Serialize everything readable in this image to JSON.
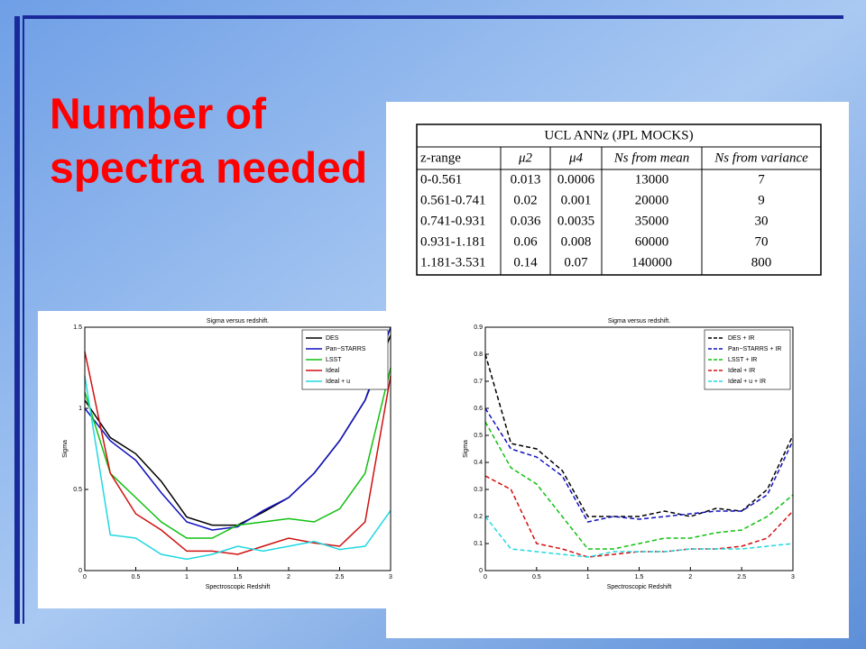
{
  "slide": {
    "title": [
      "Number of",
      "spectra needed"
    ]
  },
  "table": {
    "title": "UCL ANNz (JPL MOCKS)",
    "header": [
      "z-range",
      "μ2",
      "μ4",
      "Ns from mean",
      "Ns from variance"
    ],
    "rows": [
      [
        "0-0.561",
        "0.013",
        "0.0006",
        "13000",
        "7"
      ],
      [
        "0.561-0.741",
        "0.02",
        "0.001",
        "20000",
        "9"
      ],
      [
        "0.741-0.931",
        "0.036",
        "0.0035",
        "35000",
        "30"
      ],
      [
        "0.931-1.181",
        "0.06",
        "0.008",
        "60000",
        "70"
      ],
      [
        "1.181-3.531",
        "0.14",
        "0.07",
        "140000",
        "800"
      ]
    ]
  },
  "chart_data": [
    {
      "type": "line",
      "title": "Sigma versus redshift.",
      "x_label": "Spectroscopic Redshift",
      "y_label": "Sigma",
      "line_style": "solid",
      "legend": "upper right",
      "x": [
        0,
        0.25,
        0.5,
        0.75,
        1,
        1.25,
        1.5,
        1.75,
        2,
        2.25,
        2.5,
        2.75,
        3
      ],
      "xlim": [
        0,
        3
      ],
      "xticks": [
        0,
        0.5,
        1,
        1.5,
        2,
        2.5,
        3
      ],
      "ylim": [
        0,
        1.5
      ],
      "yticks": [
        0,
        0.5,
        1,
        1.5
      ],
      "series": [
        {
          "name": "DES",
          "color": "#000000",
          "values": [
            1.05,
            0.82,
            0.72,
            0.55,
            0.33,
            0.28,
            0.28,
            0.36,
            0.45,
            0.6,
            0.8,
            1.05,
            1.45
          ]
        },
        {
          "name": "Pan−STARRS",
          "color": "#1010c0",
          "values": [
            1.0,
            0.8,
            0.68,
            0.48,
            0.3,
            0.25,
            0.27,
            0.37,
            0.45,
            0.6,
            0.8,
            1.05,
            1.5
          ]
        },
        {
          "name": "LSST",
          "color": "#10c010",
          "values": [
            1.1,
            0.6,
            0.45,
            0.3,
            0.2,
            0.2,
            0.28,
            0.3,
            0.32,
            0.3,
            0.38,
            0.6,
            1.25
          ]
        },
        {
          "name": "Ideal",
          "color": "#d01010",
          "values": [
            1.35,
            0.6,
            0.35,
            0.25,
            0.12,
            0.12,
            0.1,
            0.15,
            0.2,
            0.17,
            0.15,
            0.3,
            1.2
          ]
        },
        {
          "name": "Ideal + u",
          "color": "#20d8e0",
          "values": [
            1.2,
            0.22,
            0.2,
            0.1,
            0.07,
            0.1,
            0.15,
            0.12,
            0.15,
            0.18,
            0.13,
            0.15,
            0.37
          ]
        }
      ]
    },
    {
      "type": "line",
      "title": "Sigma versus redshift.",
      "x_label": "Spectroscopic Redshift",
      "y_label": "Sigma",
      "line_style": "dashed",
      "legend": "upper right",
      "x": [
        0,
        0.25,
        0.5,
        0.75,
        1,
        1.25,
        1.5,
        1.75,
        2,
        2.25,
        2.5,
        2.75,
        3
      ],
      "xlim": [
        0,
        3
      ],
      "xticks": [
        0,
        0.5,
        1,
        1.5,
        2,
        2.5,
        3
      ],
      "ylim": [
        0,
        0.9
      ],
      "yticks": [
        0,
        0.1,
        0.2,
        0.3,
        0.4,
        0.5,
        0.6,
        0.7,
        0.8,
        0.9
      ],
      "series": [
        {
          "name": "DES + IR",
          "color": "#000000",
          "values": [
            0.8,
            0.47,
            0.45,
            0.37,
            0.2,
            0.2,
            0.2,
            0.22,
            0.2,
            0.23,
            0.22,
            0.3,
            0.5
          ]
        },
        {
          "name": "Pan−STARRS + IR",
          "color": "#1010c0",
          "values": [
            0.6,
            0.45,
            0.42,
            0.35,
            0.18,
            0.2,
            0.19,
            0.2,
            0.21,
            0.22,
            0.22,
            0.28,
            0.48
          ]
        },
        {
          "name": "LSST + IR",
          "color": "#10c010",
          "values": [
            0.55,
            0.38,
            0.32,
            0.2,
            0.08,
            0.08,
            0.1,
            0.12,
            0.12,
            0.14,
            0.15,
            0.2,
            0.28
          ]
        },
        {
          "name": "Ideal + IR",
          "color": "#d01010",
          "values": [
            0.35,
            0.3,
            0.1,
            0.08,
            0.05,
            0.06,
            0.07,
            0.07,
            0.08,
            0.08,
            0.09,
            0.12,
            0.22
          ]
        },
        {
          "name": "Ideal + u + IR",
          "color": "#20d8e0",
          "values": [
            0.2,
            0.08,
            0.07,
            0.06,
            0.05,
            0.07,
            0.07,
            0.07,
            0.08,
            0.08,
            0.08,
            0.09,
            0.1
          ]
        }
      ]
    }
  ]
}
